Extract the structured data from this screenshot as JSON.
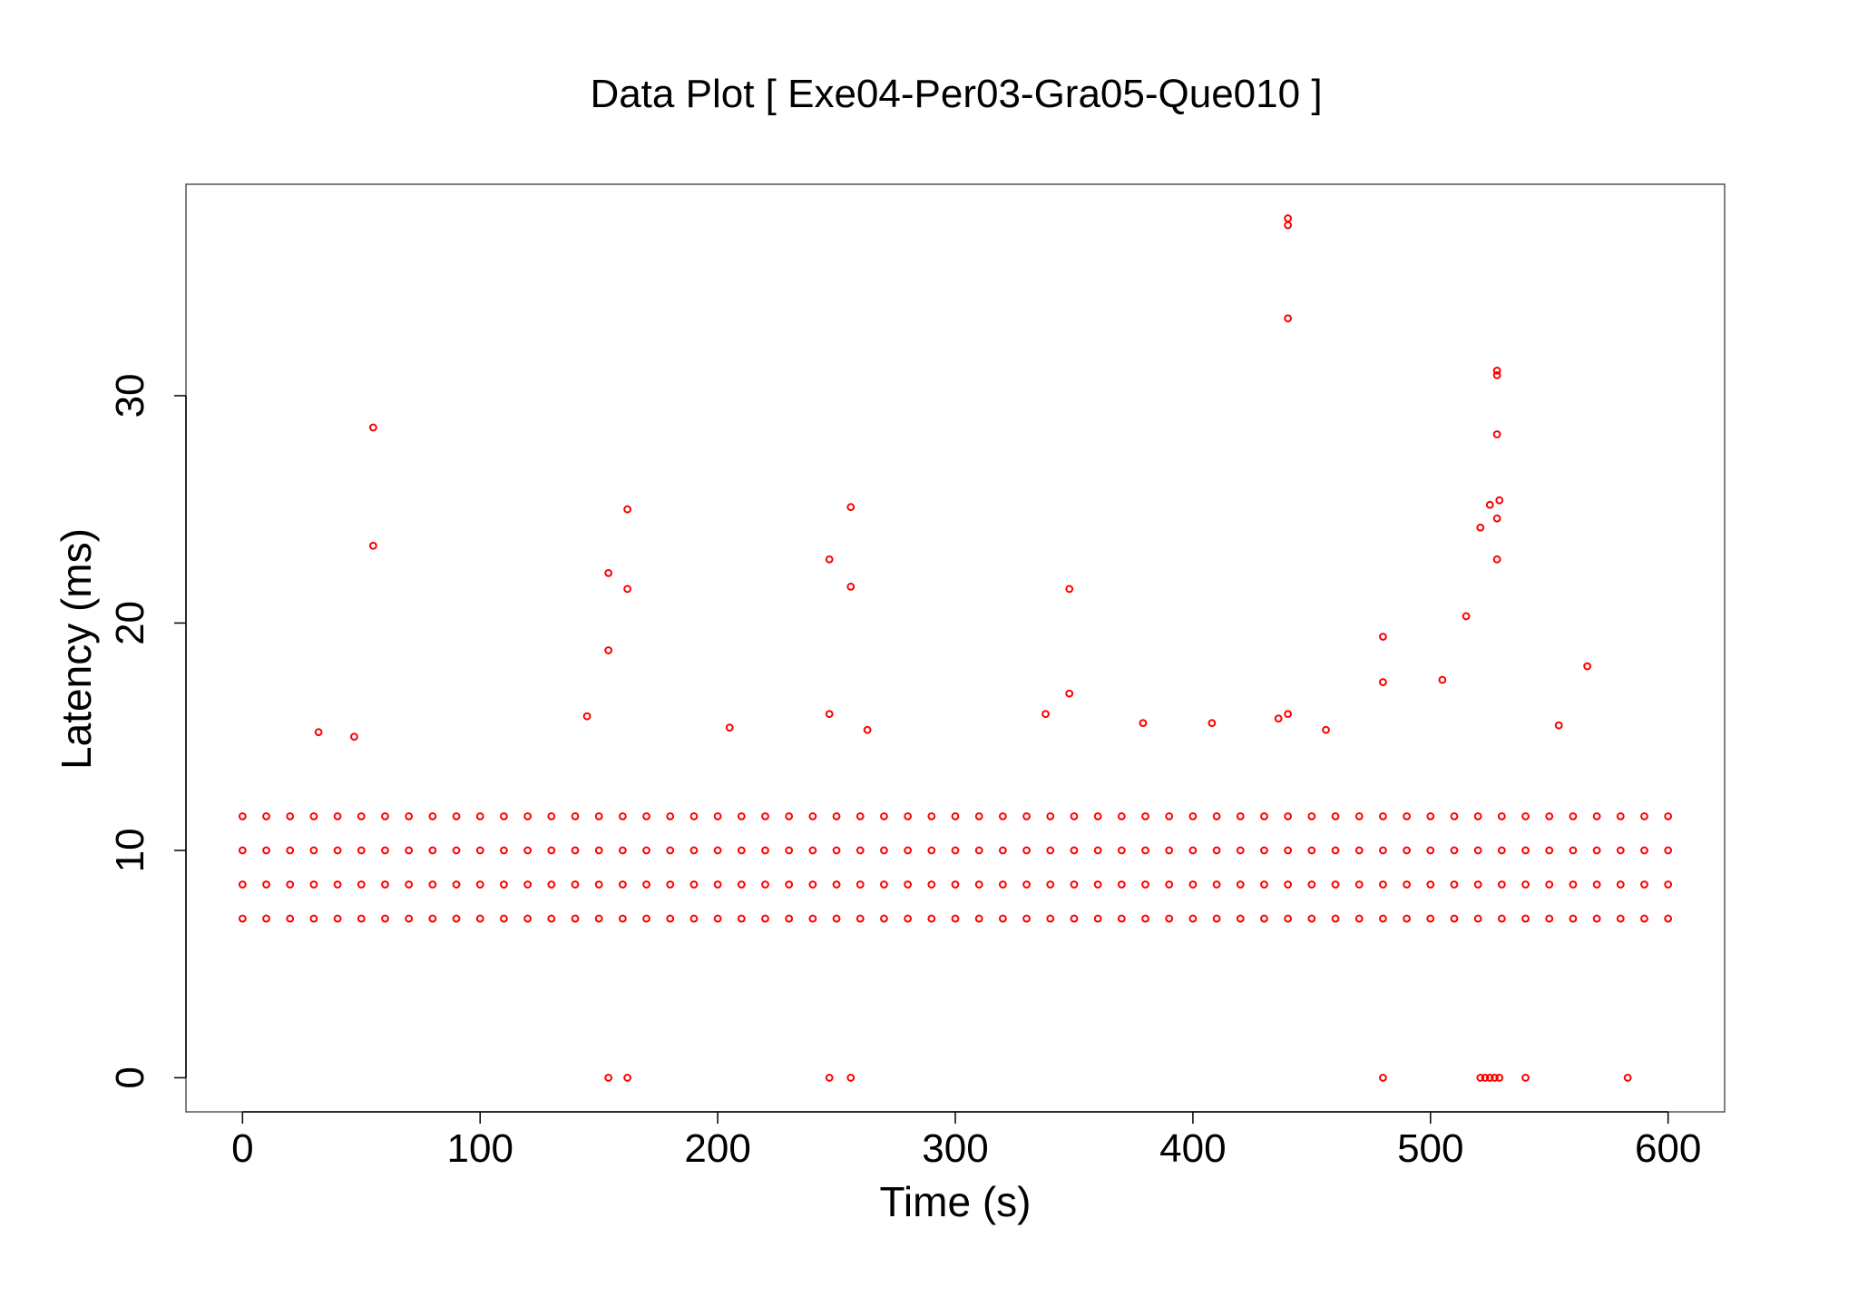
{
  "chart_data": {
    "type": "scatter",
    "title": "Data Plot [ Exe04-Per03-Gra05-Que010 ]",
    "x_label": "Time (s)",
    "y_label": "Latency (ms)",
    "color": "#ff0000",
    "xlim": [
      -23.8,
      623.8
    ],
    "ylim": [
      -1.5,
      39.3
    ],
    "xticks": [
      0,
      100,
      200,
      300,
      400,
      500,
      600
    ],
    "yticks": [
      0,
      10,
      20,
      30
    ],
    "x": [
      0,
      10,
      20,
      30,
      40,
      50,
      60,
      70,
      80,
      90,
      100,
      110,
      120,
      130,
      140,
      150,
      160,
      170,
      180,
      190,
      200,
      210,
      220,
      230,
      240,
      250,
      260,
      270,
      280,
      290,
      300,
      310,
      320,
      330,
      340,
      350,
      360,
      370,
      380,
      390,
      400,
      410,
      420,
      430,
      440,
      450,
      460,
      470,
      480,
      490,
      500,
      510,
      520,
      530,
      540,
      550,
      560,
      570,
      580,
      590,
      600,
      0,
      10,
      20,
      30,
      40,
      50,
      60,
      70,
      80,
      90,
      100,
      110,
      120,
      130,
      140,
      150,
      160,
      170,
      180,
      190,
      200,
      210,
      220,
      230,
      240,
      250,
      260,
      270,
      280,
      290,
      300,
      310,
      320,
      330,
      340,
      350,
      360,
      370,
      380,
      390,
      400,
      410,
      420,
      430,
      440,
      450,
      460,
      470,
      480,
      490,
      500,
      510,
      520,
      530,
      540,
      550,
      560,
      570,
      580,
      590,
      600,
      0,
      10,
      20,
      30,
      40,
      50,
      60,
      70,
      80,
      90,
      100,
      110,
      120,
      130,
      140,
      150,
      160,
      170,
      180,
      190,
      200,
      210,
      220,
      230,
      240,
      250,
      260,
      270,
      280,
      290,
      300,
      310,
      320,
      330,
      340,
      350,
      360,
      370,
      380,
      390,
      400,
      410,
      420,
      430,
      440,
      450,
      460,
      470,
      480,
      490,
      500,
      510,
      520,
      530,
      540,
      550,
      560,
      570,
      580,
      590,
      600,
      0,
      10,
      20,
      30,
      40,
      50,
      60,
      70,
      80,
      90,
      100,
      110,
      120,
      130,
      140,
      150,
      160,
      170,
      180,
      190,
      200,
      210,
      220,
      230,
      240,
      250,
      260,
      270,
      280,
      290,
      300,
      310,
      320,
      330,
      340,
      350,
      360,
      370,
      380,
      390,
      400,
      410,
      420,
      430,
      440,
      450,
      460,
      470,
      480,
      490,
      500,
      510,
      520,
      530,
      540,
      550,
      560,
      570,
      580,
      590,
      600,
      55,
      55,
      154,
      154,
      162,
      162,
      247,
      247,
      256,
      256,
      348,
      348,
      440,
      440,
      440,
      440,
      480,
      480,
      528,
      528,
      528,
      529,
      528,
      528,
      525,
      521,
      515,
      566,
      505,
      32,
      47,
      205,
      263,
      338,
      379,
      408,
      436,
      456,
      554,
      145,
      154,
      162,
      247,
      256,
      480,
      521,
      523,
      525,
      527,
      529,
      540,
      583
    ],
    "values": [
      7,
      7,
      7,
      7,
      7,
      7,
      7,
      7,
      7,
      7,
      7,
      7,
      7,
      7,
      7,
      7,
      7,
      7,
      7,
      7,
      7,
      7,
      7,
      7,
      7,
      7,
      7,
      7,
      7,
      7,
      7,
      7,
      7,
      7,
      7,
      7,
      7,
      7,
      7,
      7,
      7,
      7,
      7,
      7,
      7,
      7,
      7,
      7,
      7,
      7,
      7,
      7,
      7,
      7,
      7,
      7,
      7,
      7,
      7,
      7,
      7,
      8.5,
      8.5,
      8.5,
      8.5,
      8.5,
      8.5,
      8.5,
      8.5,
      8.5,
      8.5,
      8.5,
      8.5,
      8.5,
      8.5,
      8.5,
      8.5,
      8.5,
      8.5,
      8.5,
      8.5,
      8.5,
      8.5,
      8.5,
      8.5,
      8.5,
      8.5,
      8.5,
      8.5,
      8.5,
      8.5,
      8.5,
      8.5,
      8.5,
      8.5,
      8.5,
      8.5,
      8.5,
      8.5,
      8.5,
      8.5,
      8.5,
      8.5,
      8.5,
      8.5,
      8.5,
      8.5,
      8.5,
      8.5,
      8.5,
      8.5,
      8.5,
      8.5,
      8.5,
      8.5,
      8.5,
      8.5,
      8.5,
      8.5,
      8.5,
      8.5,
      8.5,
      10,
      10,
      10,
      10,
      10,
      10,
      10,
      10,
      10,
      10,
      10,
      10,
      10,
      10,
      10,
      10,
      10,
      10,
      10,
      10,
      10,
      10,
      10,
      10,
      10,
      10,
      10,
      10,
      10,
      10,
      10,
      10,
      10,
      10,
      10,
      10,
      10,
      10,
      10,
      10,
      10,
      10,
      10,
      10,
      10,
      10,
      10,
      10,
      10,
      10,
      10,
      10,
      10,
      10,
      10,
      10,
      10,
      10,
      10,
      10,
      10,
      11.5,
      11.5,
      11.5,
      11.5,
      11.5,
      11.5,
      11.5,
      11.5,
      11.5,
      11.5,
      11.5,
      11.5,
      11.5,
      11.5,
      11.5,
      11.5,
      11.5,
      11.5,
      11.5,
      11.5,
      11.5,
      11.5,
      11.5,
      11.5,
      11.5,
      11.5,
      11.5,
      11.5,
      11.5,
      11.5,
      11.5,
      11.5,
      11.5,
      11.5,
      11.5,
      11.5,
      11.5,
      11.5,
      11.5,
      11.5,
      11.5,
      11.5,
      11.5,
      11.5,
      11.5,
      11.5,
      11.5,
      11.5,
      11.5,
      11.5,
      11.5,
      11.5,
      11.5,
      11.5,
      11.5,
      11.5,
      11.5,
      11.5,
      11.5,
      11.5,
      11.5,
      28.6,
      23.4,
      22.2,
      18.8,
      25.0,
      21.5,
      22.8,
      16.0,
      25.1,
      21.6,
      21.5,
      16.9,
      37.8,
      37.5,
      33.4,
      16.0,
      19.4,
      17.4,
      31.1,
      30.9,
      28.3,
      25.4,
      24.6,
      22.8,
      25.2,
      24.2,
      20.3,
      18.1,
      17.5,
      15.2,
      15.0,
      15.4,
      15.3,
      16.0,
      15.6,
      15.6,
      15.8,
      15.3,
      15.5,
      15.9,
      0,
      0,
      0,
      0,
      0,
      0,
      0,
      0,
      0,
      0,
      0,
      0
    ]
  }
}
